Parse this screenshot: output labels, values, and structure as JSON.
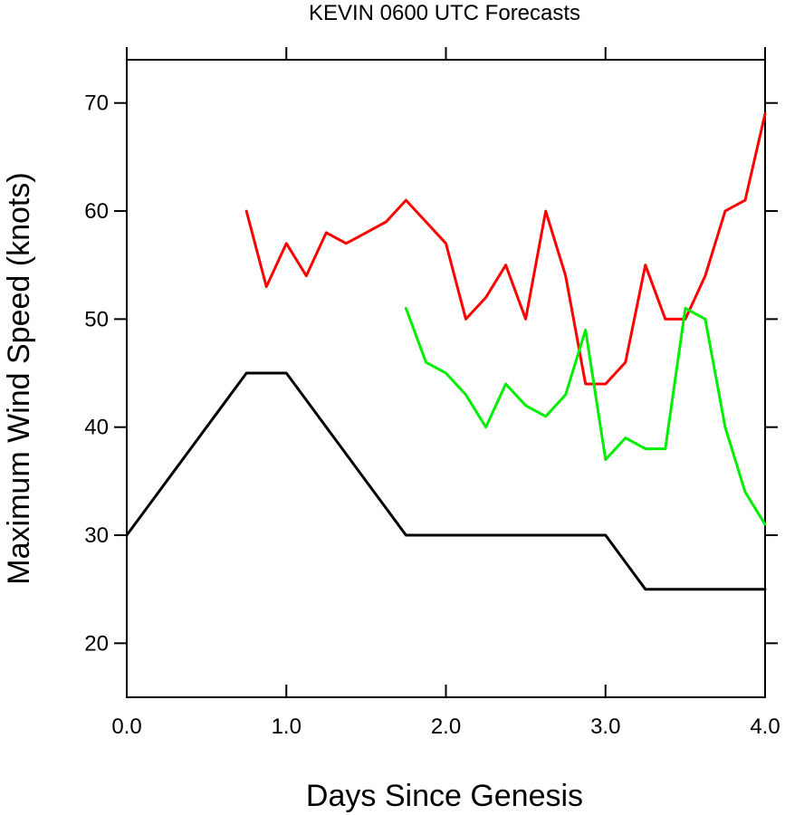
{
  "chart_data": {
    "type": "line",
    "title": "KEVIN 0600 UTC Forecasts",
    "xlabel": "Days Since Genesis",
    "ylabel": "Maximum Wind Speed (knots)",
    "xlim": [
      0,
      4
    ],
    "ylim": [
      15,
      74
    ],
    "xticks": [
      0,
      1,
      2,
      3,
      4
    ],
    "xtick_labels": [
      "0.0",
      "1.0",
      "2.0",
      "3.0",
      "4.0"
    ],
    "yticks": [
      20,
      30,
      40,
      50,
      60,
      70
    ],
    "ytick_labels": [
      "20",
      "30",
      "40",
      "50",
      "60",
      "70"
    ],
    "grid": false,
    "legend": "none",
    "series": [
      {
        "color": "#000000",
        "x": [
          0,
          0.75,
          1.0,
          1.75,
          3.0,
          3.25,
          4.0
        ],
        "y": [
          30,
          45,
          45,
          30,
          30,
          25,
          25
        ]
      },
      {
        "color": "#ff0000",
        "x": [
          0.75,
          0.875,
          1.0,
          1.125,
          1.25,
          1.375,
          1.5,
          1.625,
          1.75,
          1.875,
          2.0,
          2.125,
          2.25,
          2.375,
          2.5,
          2.625,
          2.75,
          2.875,
          3.0,
          3.125,
          3.25,
          3.375,
          3.5,
          3.625,
          3.75,
          3.875,
          4.0
        ],
        "y": [
          60,
          53,
          57,
          54,
          58,
          57,
          58,
          59,
          61,
          59,
          57,
          50,
          52,
          55,
          50,
          60,
          54,
          44,
          44,
          46,
          55,
          50,
          50,
          54,
          60,
          61,
          69
        ]
      },
      {
        "color": "#00ee00",
        "x": [
          1.75,
          1.875,
          2.0,
          2.125,
          2.25,
          2.375,
          2.5,
          2.625,
          2.75,
          2.875,
          3.0,
          3.125,
          3.25,
          3.375,
          3.5,
          3.625,
          3.75,
          3.875,
          4.0
        ],
        "y": [
          51,
          46,
          45,
          43,
          40,
          44,
          42,
          41,
          43,
          49,
          37,
          39,
          38,
          38,
          51,
          50,
          40,
          34,
          31
        ]
      }
    ]
  }
}
